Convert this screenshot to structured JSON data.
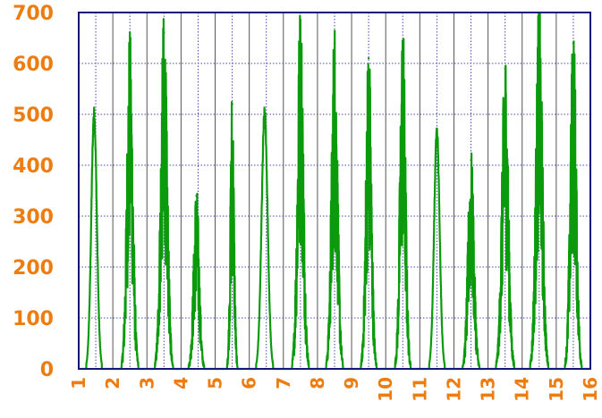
{
  "chart_data": {
    "type": "line",
    "title": "",
    "xlabel": "",
    "ylabel": "",
    "xlim": [
      1,
      16
    ],
    "ylim": [
      0,
      700
    ],
    "x_ticks": [
      "1",
      "2",
      "3",
      "4",
      "5",
      "6",
      "7",
      "8",
      "9",
      "10",
      "11",
      "12",
      "13",
      "14",
      "15",
      "16"
    ],
    "y_ticks": [
      "0",
      "100",
      "200",
      "300",
      "400",
      "500",
      "600",
      "700"
    ],
    "grid": true,
    "legend": "none",
    "colors": {
      "series": "#0b9a0b",
      "tick_labels": "#ee7d11",
      "frame": "#15157a",
      "grid_dotted": "#4a4aa8",
      "grid_solid": "#555555"
    },
    "series": [
      {
        "peaks": [
          {
            "center": 1.45,
            "peak": 505,
            "width": 0.12,
            "style": "smooth"
          },
          {
            "center": 2.5,
            "peak": 630,
            "width": 0.13,
            "style": "noisy"
          },
          {
            "center": 3.5,
            "peak": 660,
            "width": 0.14,
            "style": "noisy"
          },
          {
            "center": 4.45,
            "peak": 340,
            "width": 0.12,
            "style": "noisy"
          },
          {
            "center": 5.5,
            "peak": 520,
            "width": 0.08,
            "style": "noisy"
          },
          {
            "center": 6.45,
            "peak": 505,
            "width": 0.13,
            "style": "smooth"
          },
          {
            "center": 7.5,
            "peak": 680,
            "width": 0.13,
            "style": "noisy"
          },
          {
            "center": 8.5,
            "peak": 640,
            "width": 0.13,
            "style": "noisy"
          },
          {
            "center": 9.5,
            "peak": 610,
            "width": 0.12,
            "style": "noisy"
          },
          {
            "center": 10.5,
            "peak": 645,
            "width": 0.12,
            "style": "noisy"
          },
          {
            "center": 11.5,
            "peak": 470,
            "width": 0.12,
            "style": "smooth"
          },
          {
            "center": 12.5,
            "peak": 410,
            "width": 0.13,
            "style": "noisy"
          },
          {
            "center": 13.5,
            "peak": 590,
            "width": 0.14,
            "style": "noisy"
          },
          {
            "center": 14.5,
            "peak": 690,
            "width": 0.14,
            "style": "noisy"
          },
          {
            "center": 15.5,
            "peak": 640,
            "width": 0.13,
            "style": "noisy"
          }
        ]
      }
    ]
  }
}
